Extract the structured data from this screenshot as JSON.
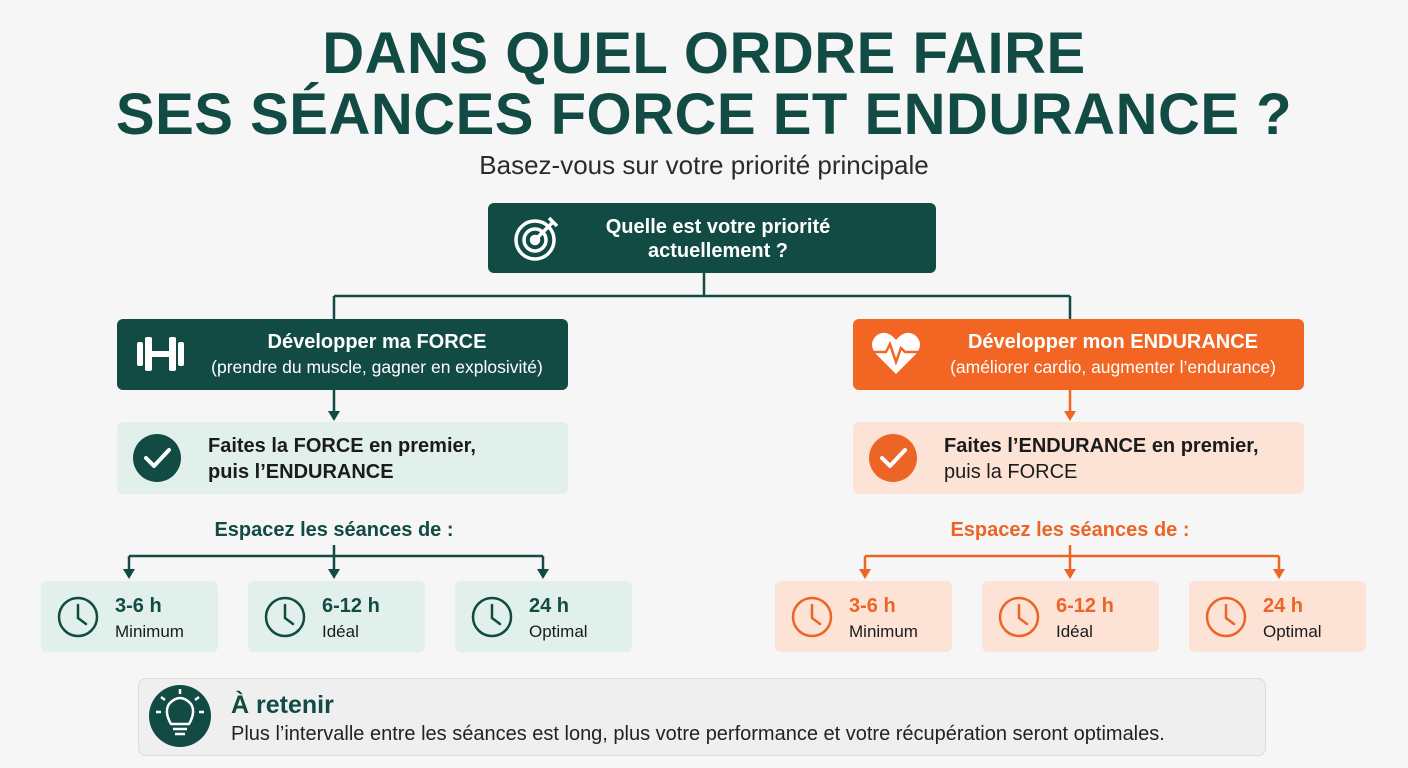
{
  "header": {
    "title_lines": [
      "DANS QUEL ORDRE FAIRE",
      "SES SÉANCES FORCE ET ENDURANCE ?"
    ],
    "subtitle": "Basez-vous sur votre priorité principale"
  },
  "question": {
    "lines": [
      "Quelle est votre priorité",
      "actuellement ?"
    ]
  },
  "branches": [
    {
      "heading": "Développer ma FORCE",
      "detail": "(prendre du muscle, gagner en explosivité)",
      "advice_lines": [
        "Faites la FORCE en premier,",
        "puis l’ENDURANCE"
      ],
      "spacing_label": "Espacez les séances de :",
      "intervals": [
        {
          "time": "3-6 h",
          "label": "Minimum"
        },
        {
          "time": "6-12 h",
          "label": "Idéal"
        },
        {
          "time": "24 h",
          "label": "Optimal"
        }
      ]
    },
    {
      "heading": "Développer mon ENDURANCE",
      "detail": "(améliorer cardio, augmenter l’endurance)",
      "advice_lines": [
        "Faites l’ENDURANCE en premier,",
        "puis la FORCE"
      ],
      "spacing_label": "Espacez les séances de :",
      "intervals": [
        {
          "time": "3-6 h",
          "label": "Minimum"
        },
        {
          "time": "6-12 h",
          "label": "Idéal"
        },
        {
          "time": "24 h",
          "label": "Optimal"
        }
      ]
    }
  ],
  "takeaway": {
    "title": "À retenir",
    "text": "Plus l’intervalle entre les séances est long, plus votre performance et votre récupération seront optimales."
  }
}
